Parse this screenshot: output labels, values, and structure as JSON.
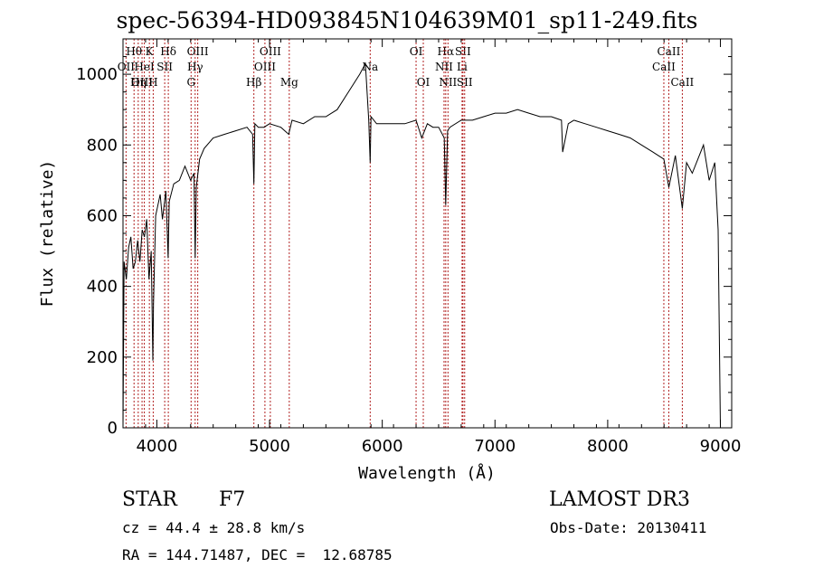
{
  "title": "spec-56394-HD093845N104639M01_sp11-249.fits",
  "info": {
    "object_class": "STAR",
    "subclass": "F7",
    "survey": "LAMOST DR3",
    "cz": "cz = 44.4 ± 28.8 km/s",
    "obs_date": "Obs-Date: 20130411",
    "radec": "RA = 144.71487, DEC =  12.68785"
  },
  "colors": {
    "spectrum": "#000000",
    "line_marker": "#b22222"
  },
  "chart_data": {
    "type": "line",
    "title": "spec-56394-HD093845N104639M01_sp11-249.fits",
    "xlabel": "Wavelength (Å)",
    "ylabel": "Flux (relative)",
    "xlim": [
      3700,
      9100
    ],
    "ylim": [
      0,
      1100
    ],
    "xticks": [
      4000,
      5000,
      6000,
      7000,
      8000,
      9000
    ],
    "yticks": [
      0,
      200,
      400,
      600,
      800,
      1000
    ],
    "grid": false,
    "series": [
      {
        "x": [
          3700,
          3710,
          3730,
          3750,
          3770,
          3790,
          3810,
          3830,
          3850,
          3870,
          3890,
          3910,
          3930,
          3950,
          3965,
          3970,
          3990,
          4010,
          4030,
          4050,
          4080,
          4100,
          4110,
          4150,
          4200,
          4250,
          4300,
          4330,
          4340,
          4350,
          4380,
          4420,
          4500,
          4600,
          4700,
          4800,
          4850,
          4861,
          4870,
          4900,
          4950,
          5000,
          5100,
          5170,
          5200,
          5300,
          5400,
          5500,
          5600,
          5700,
          5800,
          5850,
          5880,
          5893,
          5900,
          5950,
          6000,
          6100,
          6200,
          6300,
          6350,
          6400,
          6450,
          6500,
          6550,
          6563,
          6580,
          6600,
          6700,
          6800,
          6900,
          7000,
          7100,
          7200,
          7300,
          7400,
          7500,
          7590,
          7600,
          7650,
          7700,
          7800,
          7900,
          8000,
          8100,
          8200,
          8300,
          8400,
          8498,
          8542,
          8600,
          8662,
          8700,
          8750,
          8800,
          8850,
          8900,
          8950,
          8980,
          9000
        ],
        "y": [
          0,
          470,
          420,
          510,
          540,
          450,
          470,
          530,
          470,
          560,
          540,
          590,
          420,
          500,
          190,
          350,
          600,
          630,
          660,
          590,
          670,
          480,
          640,
          690,
          700,
          740,
          700,
          720,
          480,
          680,
          760,
          790,
          820,
          830,
          840,
          850,
          830,
          690,
          860,
          850,
          850,
          860,
          850,
          830,
          870,
          860,
          880,
          880,
          900,
          950,
          1000,
          1030,
          870,
          750,
          880,
          860,
          860,
          860,
          860,
          870,
          820,
          860,
          850,
          850,
          820,
          630,
          840,
          850,
          870,
          870,
          880,
          890,
          890,
          900,
          890,
          880,
          880,
          870,
          780,
          860,
          870,
          860,
          850,
          840,
          830,
          820,
          800,
          780,
          760,
          680,
          770,
          620,
          750,
          720,
          760,
          800,
          700,
          750,
          560,
          0
        ]
      }
    ],
    "spectral_lines": [
      {
        "label": "Hθ",
        "x": 3798,
        "row": 1
      },
      {
        "label": "OII",
        "x": 3727,
        "row": 2
      },
      {
        "label": "OIII",
        "x": 3869,
        "row": 3
      },
      {
        "label": "K",
        "x": 3934,
        "row": 1
      },
      {
        "label": "HeI",
        "x": 3889,
        "row": 2
      },
      {
        "label": "Hη",
        "x": 3835,
        "row": 3
      },
      {
        "label": "Hδ",
        "x": 4102,
        "row": 1
      },
      {
        "label": "SII",
        "x": 4070,
        "row": 2
      },
      {
        "label": "H",
        "x": 3968,
        "row": 3
      },
      {
        "label": "OIII",
        "x": 4363,
        "row": 1
      },
      {
        "label": "Hγ",
        "x": 4340,
        "row": 2
      },
      {
        "label": "G",
        "x": 4304,
        "row": 3
      },
      {
        "label": "OIII",
        "x": 5007,
        "row": 1
      },
      {
        "label": "OIII",
        "x": 4959,
        "row": 2
      },
      {
        "label": "Hβ",
        "x": 4861,
        "row": 3
      },
      {
        "label": "Mg",
        "x": 5175,
        "row": 3
      },
      {
        "label": "Na",
        "x": 5893,
        "row": 2
      },
      {
        "label": "OI",
        "x": 6300,
        "row": 1
      },
      {
        "label": "OI",
        "x": 6364,
        "row": 3
      },
      {
        "label": "Hα",
        "x": 6563,
        "row": 1
      },
      {
        "label": "NII",
        "x": 6548,
        "row": 2
      },
      {
        "label": "NII",
        "x": 6583,
        "row": 3
      },
      {
        "label": "SII",
        "x": 6716,
        "row": 1
      },
      {
        "label": "Li",
        "x": 6708,
        "row": 2
      },
      {
        "label": "SII",
        "x": 6731,
        "row": 3
      },
      {
        "label": "CaII",
        "x": 8542,
        "row": 1
      },
      {
        "label": "CaII",
        "x": 8498,
        "row": 2
      },
      {
        "label": "CaII",
        "x": 8662,
        "row": 3
      }
    ]
  }
}
